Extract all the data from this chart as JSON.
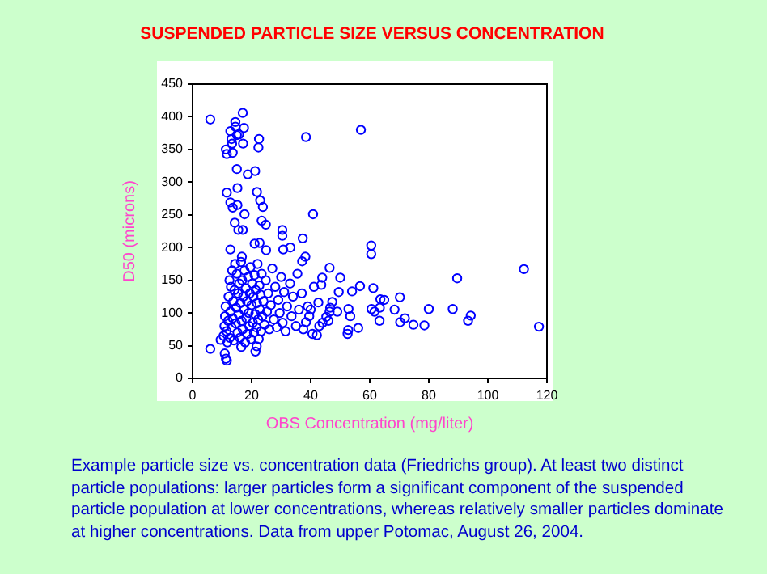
{
  "chart_data": {
    "type": "scatter",
    "title": "SUSPENDED PARTICLE SIZE VERSUS CONCENTRATION",
    "xlabel": "OBS Concentration (mg/liter)",
    "ylabel": "D50 (microns)",
    "annotations": [
      "Example particle size vs. concentration data (Friedrichs group).  At least two distinct particle populations: larger particles form a significant component of the suspended particle population at lower concentrations, whereas relatively smaller particles dominate at higher concentrations.  Data from upper Potomac, August 26, 2004."
    ],
    "xlim": [
      0,
      120
    ],
    "xticks": [
      0,
      20,
      40,
      60,
      80,
      100,
      120
    ],
    "ylim": [
      0,
      450
    ],
    "yticks": [
      0,
      50,
      100,
      150,
      200,
      250,
      300,
      350,
      400,
      450
    ],
    "grid": false,
    "legend": false,
    "marker": "circle",
    "series": [
      {
        "color": "#0000ff",
        "x": [
          6,
          17,
          14.5,
          14.5,
          17.4,
          12.8,
          15,
          15.7,
          13.2,
          22.5,
          38.4,
          57,
          13.4,
          17.1,
          11.3,
          11.6,
          13.6,
          22.3,
          15,
          21.2,
          18.7,
          11.6,
          15.2,
          21.8,
          22.9,
          12.8,
          15.2,
          23.8,
          13.6,
          40.8,
          17.6,
          23.4,
          24.8,
          14.3,
          15.5,
          17,
          30.4,
          30.4,
          37.3,
          21,
          22.7,
          24.9,
          33.1,
          30.7,
          12.8,
          16.7,
          60.5,
          60.5,
          38.2,
          37.1,
          112.2,
          89.6,
          117.3,
          94.2,
          93.3,
          88.1,
          80,
          78.5,
          74.8,
          71.9,
          70.3,
          70.2,
          68.4,
          64.9,
          63.6,
          63.3,
          63.4,
          61.6,
          60.6,
          61.2,
          56.7,
          54,
          53.4,
          52.8,
          52.7,
          52.5,
          56.1,
          49,
          49.5,
          50,
          47.3,
          46.6,
          46.4,
          46,
          45.3,
          46.4,
          43.9,
          43.6,
          42.6,
          42.9,
          42.1,
          44,
          40.6,
          38.4,
          41.1,
          39.5,
          40,
          39,
          6,
          11.3,
          11.6,
          10.9,
          21.3,
          21.7,
          16.5,
          9.5,
          10.5,
          10.8,
          11,
          11.2,
          11.5,
          11.8,
          12,
          12.2,
          12.5,
          12.6,
          12.8,
          13,
          13.2,
          13.4,
          13.6,
          13.8,
          14,
          14.2,
          14.4,
          14.6,
          14.8,
          15,
          15.2,
          15.4,
          15.6,
          15.8,
          16,
          16.2,
          16.4,
          16.6,
          16.8,
          17,
          17.2,
          17.4,
          17.6,
          17.8,
          18,
          18.2,
          18.4,
          18.6,
          18.8,
          19,
          19.2,
          19.4,
          19.6,
          19.8,
          20,
          20.2,
          20.4,
          20.6,
          20.8,
          21,
          21.2,
          21.4,
          21.6,
          21.8,
          22,
          22.2,
          22.4,
          22.6,
          22.8,
          23,
          23.2,
          23.4,
          23.6,
          24,
          24.4,
          24.8,
          25.2,
          25.6,
          26,
          26.5,
          27,
          27.5,
          28,
          28.5,
          29,
          29.5,
          30,
          30.5,
          31,
          31.5,
          32,
          33,
          33.5,
          34,
          35,
          35.5,
          36,
          37,
          37.5
        ],
        "values": [
          396,
          406,
          392,
          385,
          383,
          378,
          372,
          373,
          366,
          366,
          369,
          380,
          359,
          359,
          350,
          343,
          345,
          353,
          320,
          317,
          312,
          284,
          291,
          285,
          272,
          269,
          265,
          262,
          261,
          251,
          251,
          241,
          235,
          238,
          227,
          227,
          227,
          218,
          214,
          206,
          207,
          196,
          200,
          197,
          197,
          186,
          203,
          190,
          186,
          179,
          167,
          153,
          79,
          96,
          88,
          106,
          106,
          81,
          82,
          92,
          86,
          124,
          105,
          120,
          121,
          88,
          108,
          102,
          106,
          138,
          141,
          133,
          95,
          106,
          74,
          68,
          77,
          102,
          132,
          154,
          117,
          108,
          102,
          88,
          94,
          169,
          154,
          143,
          116,
          80,
          66,
          85,
          68,
          86,
          140,
          95,
          105,
          110,
          45,
          30,
          27,
          38,
          41,
          49,
          48,
          59,
          65,
          80,
          95,
          110,
          72,
          55,
          88,
          125,
          150,
          62,
          102,
          140,
          78,
          165,
          92,
          118,
          58,
          135,
          175,
          84,
          108,
          160,
          70,
          130,
          98,
          145,
          62,
          115,
          178,
          88,
          150,
          75,
          125,
          105,
          165,
          55,
          138,
          92,
          118,
          68,
          155,
          100,
          80,
          130,
          170,
          60,
          112,
          145,
          85,
          125,
          70,
          158,
          98,
          135,
          78,
          115,
          175,
          90,
          60,
          142,
          105,
          128,
          72,
          160,
          95,
          118,
          82,
          150,
          102,
          130,
          75,
          112,
          168,
          90,
          140,
          78,
          120,
          100,
          155,
          85,
          132,
          72,
          110,
          145,
          95,
          125,
          80,
          160,
          105,
          130,
          75
        ]
      }
    ]
  }
}
